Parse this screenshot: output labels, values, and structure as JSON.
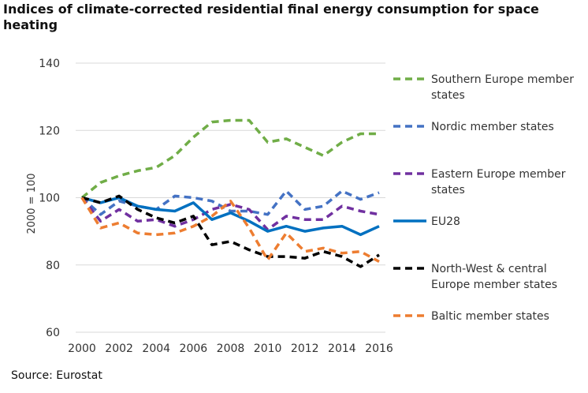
{
  "chart_data": {
    "type": "line",
    "title": "Indices of climate-corrected residential final energy consumption for space heating",
    "ylabel": "2000 = 100",
    "xlabel": "",
    "source": "Source: Eurostat",
    "ylim": [
      60,
      140
    ],
    "xlim": [
      2000,
      2016
    ],
    "yticks": [
      60,
      80,
      100,
      120,
      140
    ],
    "xticks": [
      2000,
      2002,
      2004,
      2006,
      2008,
      2010,
      2012,
      2014,
      2016
    ],
    "x": [
      2000,
      2001,
      2002,
      2003,
      2004,
      2005,
      2006,
      2007,
      2008,
      2009,
      2010,
      2011,
      2012,
      2013,
      2014,
      2015,
      2016
    ],
    "legend_position": "right",
    "grid": "horizontal",
    "series": [
      {
        "name": "Southern Europe member states",
        "color": "#70AD47",
        "dash": true,
        "values": [
          100,
          104.5,
          106.5,
          108,
          109,
          112.5,
          118,
          122.5,
          123,
          123,
          116.5,
          117.5,
          115,
          112.5,
          116.5,
          119,
          119
        ]
      },
      {
        "name": "Nordic member states",
        "color": "#4472C4",
        "dash": true,
        "values": [
          100,
          95,
          99,
          97.5,
          96.5,
          100.5,
          100,
          99,
          96,
          96,
          95,
          102,
          96.5,
          97.5,
          102,
          99.5,
          101.5
        ]
      },
      {
        "name": "Eastern Europe member states",
        "color": "#7030A0",
        "dash": true,
        "values": [
          100,
          93,
          96.5,
          93,
          93.5,
          91.5,
          93.5,
          96.5,
          98,
          96.5,
          90.5,
          94.5,
          93.5,
          93.5,
          97.5,
          96,
          95
        ]
      },
      {
        "name": "EU28",
        "color": "#0070C0",
        "dash": false,
        "values": [
          100,
          98.5,
          100,
          97.5,
          96.5,
          96,
          98.5,
          93.5,
          95.5,
          93,
          90,
          91.5,
          90,
          91,
          91.5,
          89,
          91.5
        ]
      },
      {
        "name": "North-West & central Europe member states",
        "color": "#000000",
        "dash": true,
        "values": [
          100,
          98.5,
          100.5,
          96.5,
          94,
          92.5,
          94.5,
          86,
          87,
          84.5,
          82.5,
          82.5,
          82,
          84,
          82.5,
          79.5,
          83
        ]
      },
      {
        "name": "Baltic member states",
        "color": "#ED7D31",
        "dash": true,
        "values": [
          100,
          91,
          92.5,
          89.5,
          89,
          89.5,
          91.5,
          94.5,
          99,
          91,
          81.5,
          89.5,
          84,
          85,
          83.5,
          84,
          81
        ]
      }
    ]
  }
}
